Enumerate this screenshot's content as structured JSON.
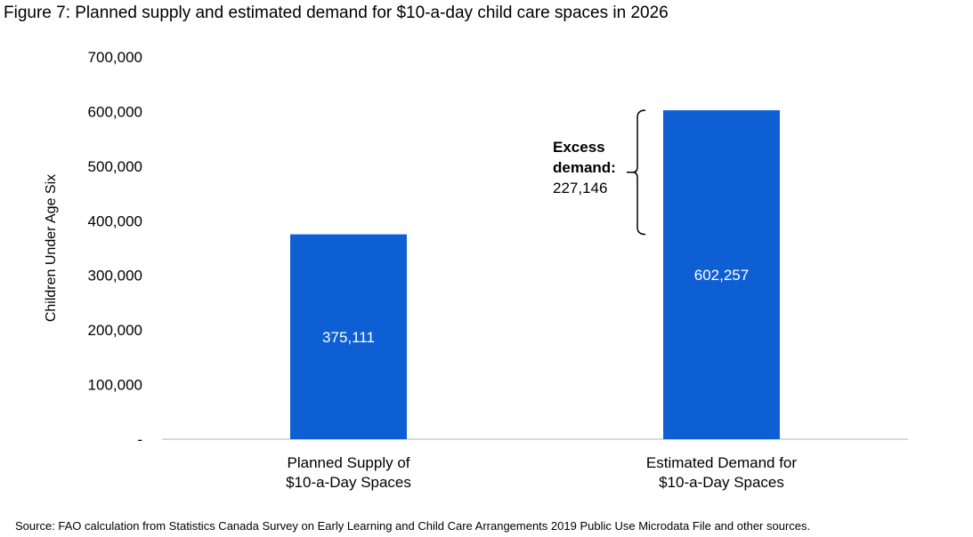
{
  "title": "Figure 7: Planned supply and estimated demand for $10-a-day child care spaces in 2026",
  "source": "Source: FAO calculation from Statistics Canada Survey on Early Learning and Child Care Arrangements 2019 Public Use Microdata File and other sources.",
  "chart_data": {
    "type": "bar",
    "categories": [
      [
        "Planned Supply of",
        "$10-a-Day Spaces"
      ],
      [
        "Estimated Demand for",
        "$10-a-Day Spaces"
      ]
    ],
    "values": [
      375111,
      602257
    ],
    "data_labels": [
      "375,111",
      "602,257"
    ],
    "ylabel": "Children Under Age Six",
    "ylim": [
      0,
      700000
    ],
    "yticks": [
      0,
      100000,
      200000,
      300000,
      400000,
      500000,
      600000,
      700000
    ],
    "ytick_labels": [
      "-",
      "100,000",
      "200,000",
      "300,000",
      "400,000",
      "500,000",
      "600,000",
      "700,000"
    ],
    "grid": false,
    "bar_color": "#0f5fd4",
    "annotation": {
      "label_bold": [
        "Excess",
        "demand:"
      ],
      "value": "227,146",
      "range": [
        375111,
        602257
      ]
    }
  }
}
